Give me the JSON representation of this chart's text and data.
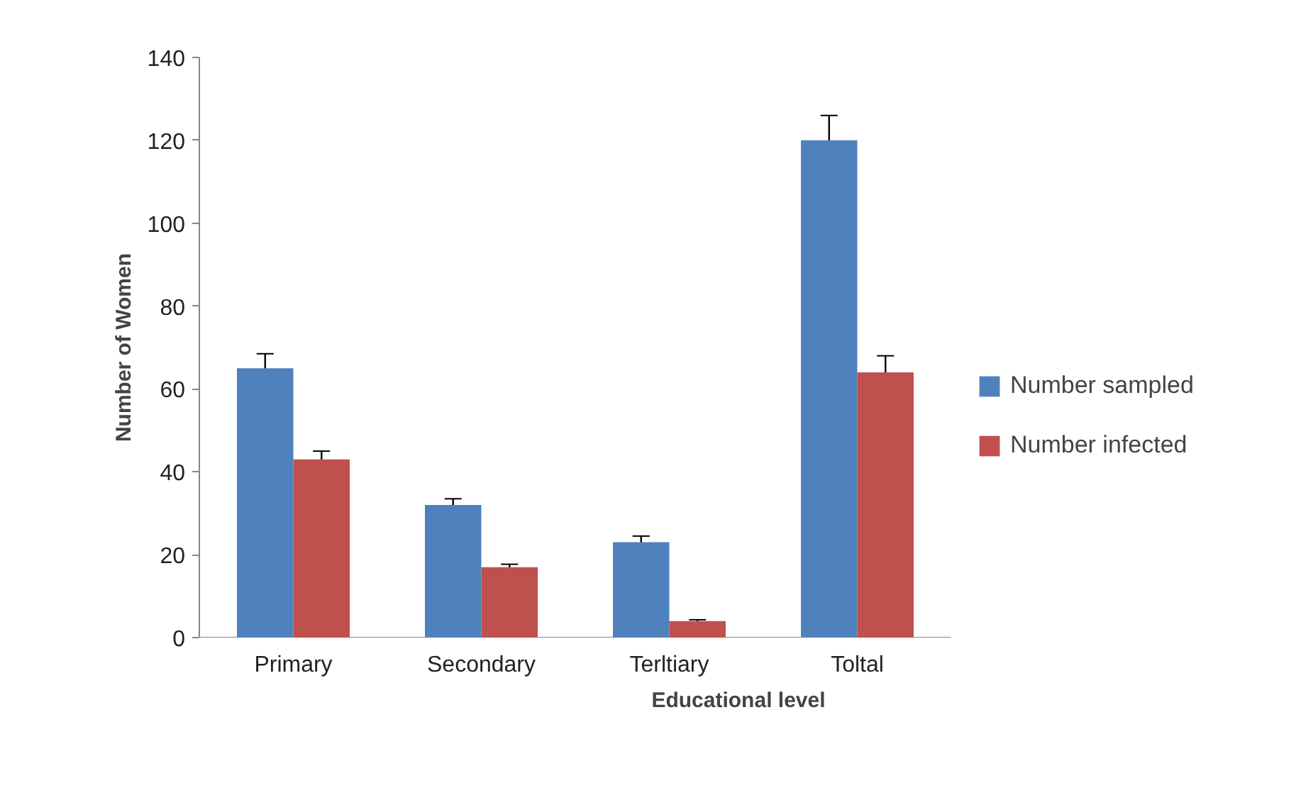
{
  "chart_data": {
    "type": "bar",
    "xlabel": "Educational level",
    "ylabel": "Number of Women",
    "categories": [
      "Primary",
      "Secondary",
      "Terltiary",
      "Toltal"
    ],
    "series": [
      {
        "name": "Number sampled",
        "color": "#4f81bd",
        "values": [
          65,
          32,
          23,
          120
        ],
        "errors": [
          3.5,
          1.5,
          1.5,
          6
        ]
      },
      {
        "name": "Number infected",
        "color": "#c0504d",
        "values": [
          43,
          17,
          4,
          64
        ],
        "errors": [
          2,
          0.7,
          0.3,
          4
        ]
      }
    ],
    "ylim": [
      0,
      140
    ],
    "yticks": [
      0,
      20,
      40,
      60,
      80,
      100,
      120,
      140
    ],
    "legend": "right",
    "grid": false
  }
}
